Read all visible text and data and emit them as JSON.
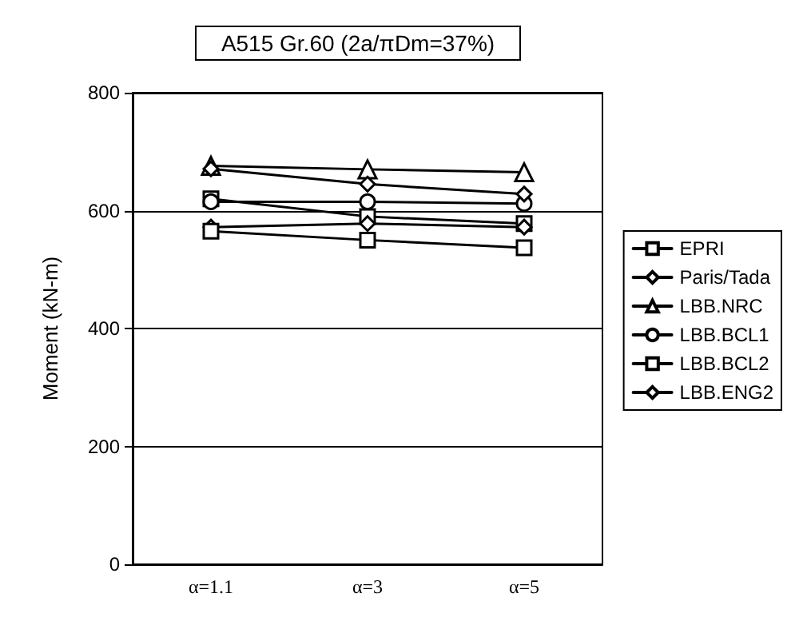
{
  "chart_data": {
    "type": "line",
    "title": "A515 Gr.60 (2a/πDm=37%)",
    "ylabel": "Moment (kN-m)",
    "categories": [
      "α=1.1",
      "α=3",
      "α=5"
    ],
    "ylim": [
      0,
      800
    ],
    "yticks": [
      0,
      200,
      400,
      600,
      800
    ],
    "grid": "y",
    "legend": "right",
    "line_style": "solid",
    "series": [
      {
        "name": "EPRI",
        "color": "#000000",
        "marker": "square",
        "values": [
          620,
          590,
          578
        ]
      },
      {
        "name": "Paris/Tada",
        "color": "#000000",
        "marker": "diamond",
        "values": [
          572,
          578,
          572
        ]
      },
      {
        "name": "LBB.NRC",
        "color": "#000000",
        "marker": "triangle",
        "values": [
          676,
          670,
          665
        ]
      },
      {
        "name": "LBB.BCL1",
        "color": "#000000",
        "marker": "circle",
        "values": [
          615,
          615,
          612
        ]
      },
      {
        "name": "LBB.BCL2",
        "color": "#000000",
        "marker": "square",
        "values": [
          565,
          550,
          537
        ]
      },
      {
        "name": "LBB.ENG2",
        "color": "#000000",
        "marker": "diamond",
        "values": [
          671,
          645,
          628
        ]
      }
    ]
  }
}
